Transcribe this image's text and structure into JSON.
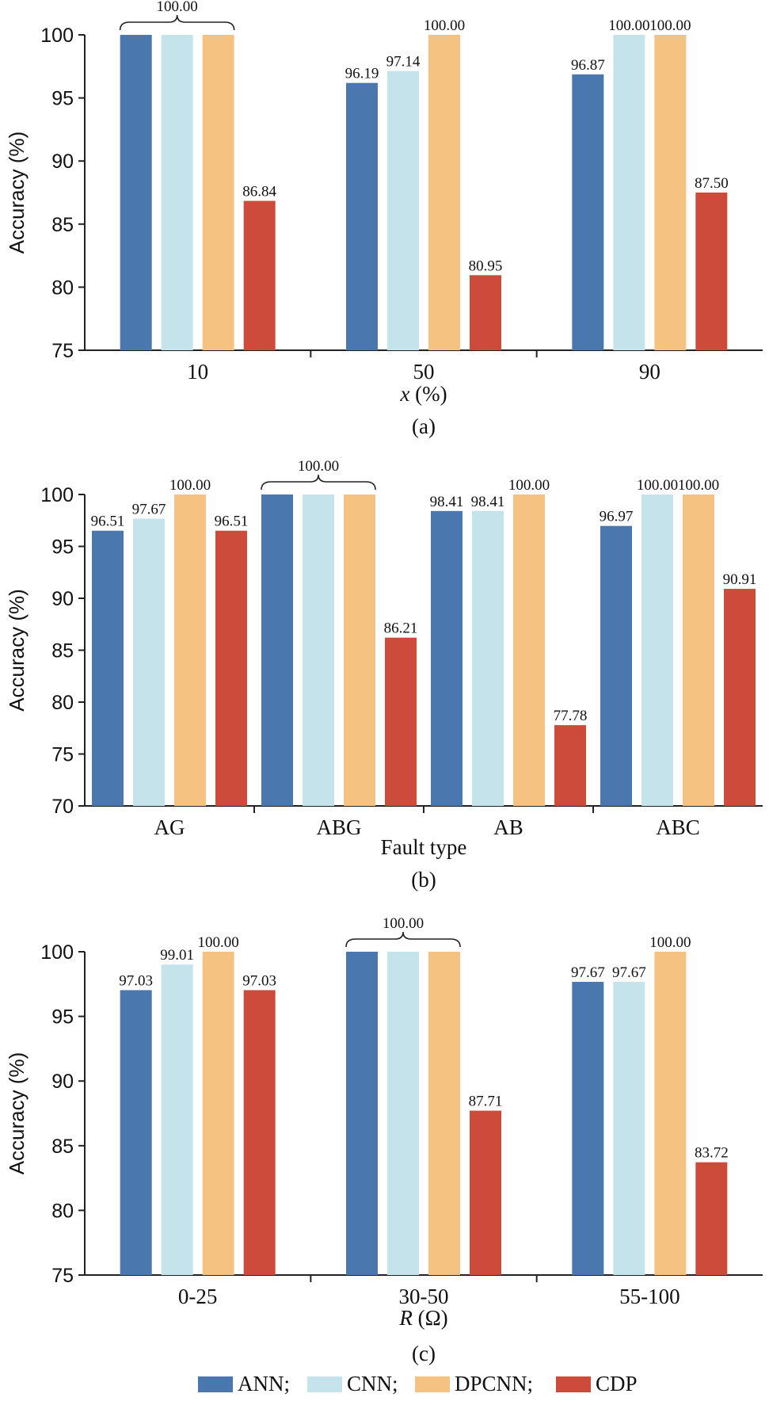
{
  "chart_data": [
    {
      "type": "bar",
      "panel_caption": "(a)",
      "xlabel": "x (%)",
      "xlabel_parts": {
        "var": "x",
        "unit": " (%)"
      },
      "ylabel": "Accuracy (%)",
      "ylim": [
        75,
        100
      ],
      "yticks": [
        75,
        80,
        85,
        90,
        95,
        100
      ],
      "categories": [
        "10",
        "50",
        "90"
      ],
      "series": [
        {
          "name": "ANN",
          "values": [
            100.0,
            96.19,
            96.87
          ]
        },
        {
          "name": "CNN",
          "values": [
            100.0,
            97.14,
            100.0
          ]
        },
        {
          "name": "DPCNN",
          "values": [
            100.0,
            100.0,
            100.0
          ]
        },
        {
          "name": "CDP",
          "values": [
            86.84,
            80.95,
            87.5
          ]
        }
      ],
      "value_labels": [
        [
          "",
          "",
          "",
          "86.84"
        ],
        [
          "96.19",
          "97.14",
          "100.00",
          "80.95"
        ],
        [
          "96.87",
          "100.00",
          "100.00",
          "87.50"
        ]
      ],
      "braces": [
        {
          "category_index": 0,
          "label": "100.00"
        }
      ]
    },
    {
      "type": "bar",
      "panel_caption": "(b)",
      "xlabel": "Fault type",
      "ylabel": "Accuracy (%)",
      "ylim": [
        70,
        100
      ],
      "yticks": [
        70,
        75,
        80,
        85,
        90,
        95,
        100
      ],
      "categories": [
        "AG",
        "ABG",
        "AB",
        "ABC"
      ],
      "series": [
        {
          "name": "ANN",
          "values": [
            96.51,
            100.0,
            98.41,
            96.97
          ]
        },
        {
          "name": "CNN",
          "values": [
            97.67,
            100.0,
            98.41,
            100.0
          ]
        },
        {
          "name": "DPCNN",
          "values": [
            100.0,
            100.0,
            100.0,
            100.0
          ]
        },
        {
          "name": "CDP",
          "values": [
            96.51,
            86.21,
            77.78,
            90.91
          ]
        }
      ],
      "value_labels": [
        [
          "96.51",
          "97.67",
          "100.00",
          "96.51"
        ],
        [
          "",
          "",
          "",
          "86.21"
        ],
        [
          "98.41",
          "98.41",
          "100.00",
          "77.78"
        ],
        [
          "96.97",
          "100.00",
          "100.00",
          "90.91"
        ]
      ],
      "braces": [
        {
          "category_index": 1,
          "label": "100.00"
        }
      ]
    },
    {
      "type": "bar",
      "panel_caption": "(c)",
      "xlabel": "R (Ω)",
      "xlabel_parts": {
        "var": "R",
        "unit": " (Ω)"
      },
      "ylabel": "Accuracy (%)",
      "ylim": [
        75,
        100
      ],
      "yticks": [
        75,
        80,
        85,
        90,
        95,
        100
      ],
      "categories": [
        "0-25",
        "30-50",
        "55-100"
      ],
      "series": [
        {
          "name": "ANN",
          "values": [
            97.03,
            100.0,
            97.67
          ]
        },
        {
          "name": "CNN",
          "values": [
            99.01,
            100.0,
            97.67
          ]
        },
        {
          "name": "DPCNN",
          "values": [
            100.0,
            100.0,
            100.0
          ]
        },
        {
          "name": "CDP",
          "values": [
            97.03,
            87.71,
            83.72
          ]
        }
      ],
      "value_labels": [
        [
          "97.03",
          "99.01",
          "100.00",
          "97.03"
        ],
        [
          "",
          "",
          "",
          "87.71"
        ],
        [
          "97.67",
          "97.67",
          "100.00",
          "83.72"
        ]
      ],
      "braces": [
        {
          "category_index": 1,
          "label": "100.00"
        }
      ]
    }
  ],
  "legend": {
    "placement": "bottom",
    "items": [
      {
        "label": "ANN;",
        "color": "#4a77ae"
      },
      {
        "label": "CNN;",
        "color": "#c5e3ea"
      },
      {
        "label": "DPCNN;",
        "color": "#f6c282"
      },
      {
        "label": "CDP",
        "color": "#cc4b3b"
      }
    ]
  },
  "colors": {
    "ANN": "#4a77ae",
    "CNN": "#c5e3ea",
    "DPCNN": "#f6c282",
    "CDP": "#cc4b3b",
    "axis": "#222222"
  }
}
